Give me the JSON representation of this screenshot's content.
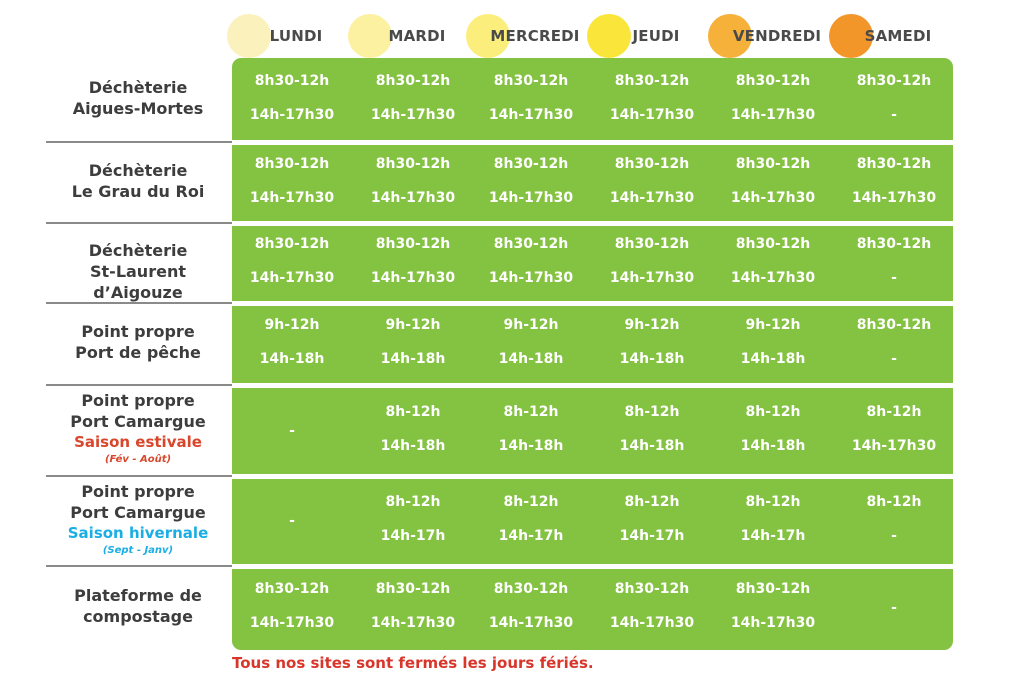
{
  "colors": {
    "panel": "#84c241",
    "text_dark": "#3d3d3d",
    "summer": "#d8462b",
    "winter": "#1aaee4",
    "footer": "#d8362b",
    "day_dots": [
      "#fbf1bd",
      "#fbf1a0",
      "#fcee7c",
      "#fae63a",
      "#f6b13b",
      "#f2962a"
    ]
  },
  "days": [
    "LUNDI",
    "MARDI",
    "MERCREDI",
    "JEUDI",
    "VENDREDI",
    "SAMEDI"
  ],
  "rows": [
    {
      "site": [
        "Déchèterie",
        "Aigues-Mortes"
      ],
      "cells": [
        [
          "8h30-12h",
          "14h-17h30"
        ],
        [
          "8h30-12h",
          "14h-17h30"
        ],
        [
          "8h30-12h",
          "14h-17h30"
        ],
        [
          "8h30-12h",
          "14h-17h30"
        ],
        [
          "8h30-12h",
          "14h-17h30"
        ],
        [
          "8h30-12h",
          "-"
        ]
      ]
    },
    {
      "site": [
        "Déchèterie",
        "Le Grau du Roi"
      ],
      "cells": [
        [
          "8h30-12h",
          "14h-17h30"
        ],
        [
          "8h30-12h",
          "14h-17h30"
        ],
        [
          "8h30-12h",
          "14h-17h30"
        ],
        [
          "8h30-12h",
          "14h-17h30"
        ],
        [
          "8h30-12h",
          "14h-17h30"
        ],
        [
          "8h30-12h",
          "14h-17h30"
        ]
      ]
    },
    {
      "site": [
        "Déchèterie",
        "St-Laurent d’Aigouze"
      ],
      "cells": [
        [
          "8h30-12h",
          "14h-17h30"
        ],
        [
          "8h30-12h",
          "14h-17h30"
        ],
        [
          "8h30-12h",
          "14h-17h30"
        ],
        [
          "8h30-12h",
          "14h-17h30"
        ],
        [
          "8h30-12h",
          "14h-17h30"
        ],
        [
          "8h30-12h",
          "-"
        ]
      ]
    },
    {
      "site": [
        "Point propre",
        "Port de pêche"
      ],
      "cells": [
        [
          "9h-12h",
          "14h-18h"
        ],
        [
          "9h-12h",
          "14h-18h"
        ],
        [
          "9h-12h",
          "14h-18h"
        ],
        [
          "9h-12h",
          "14h-18h"
        ],
        [
          "9h-12h",
          "14h-18h"
        ],
        [
          "8h30-12h",
          "-"
        ]
      ]
    },
    {
      "site": [
        "Point propre",
        "Port Camargue"
      ],
      "season": "Saison estivale",
      "range": "(Fév - Août)",
      "season_color": "summer",
      "cells": [
        [
          "-"
        ],
        [
          "8h-12h",
          "14h-18h"
        ],
        [
          "8h-12h",
          "14h-18h"
        ],
        [
          "8h-12h",
          "14h-18h"
        ],
        [
          "8h-12h",
          "14h-18h"
        ],
        [
          "8h-12h",
          "14h-17h30"
        ]
      ]
    },
    {
      "site": [
        "Point propre",
        "Port Camargue"
      ],
      "season": "Saison hivernale",
      "range": "(Sept - Janv)",
      "season_color": "winter",
      "cells": [
        [
          "-"
        ],
        [
          "8h-12h",
          "14h-17h"
        ],
        [
          "8h-12h",
          "14h-17h"
        ],
        [
          "8h-12h",
          "14h-17h"
        ],
        [
          "8h-12h",
          "14h-17h"
        ],
        [
          "8h-12h",
          "-"
        ]
      ]
    },
    {
      "site": [
        "Plateforme de",
        "compostage"
      ],
      "cells": [
        [
          "8h30-12h",
          "14h-17h30"
        ],
        [
          "8h30-12h",
          "14h-17h30"
        ],
        [
          "8h30-12h",
          "14h-17h30"
        ],
        [
          "8h30-12h",
          "14h-17h30"
        ],
        [
          "8h30-12h",
          "14h-17h30"
        ],
        [
          "-"
        ]
      ]
    }
  ],
  "footer": "Tous nos sites sont fermés les jours fériés."
}
